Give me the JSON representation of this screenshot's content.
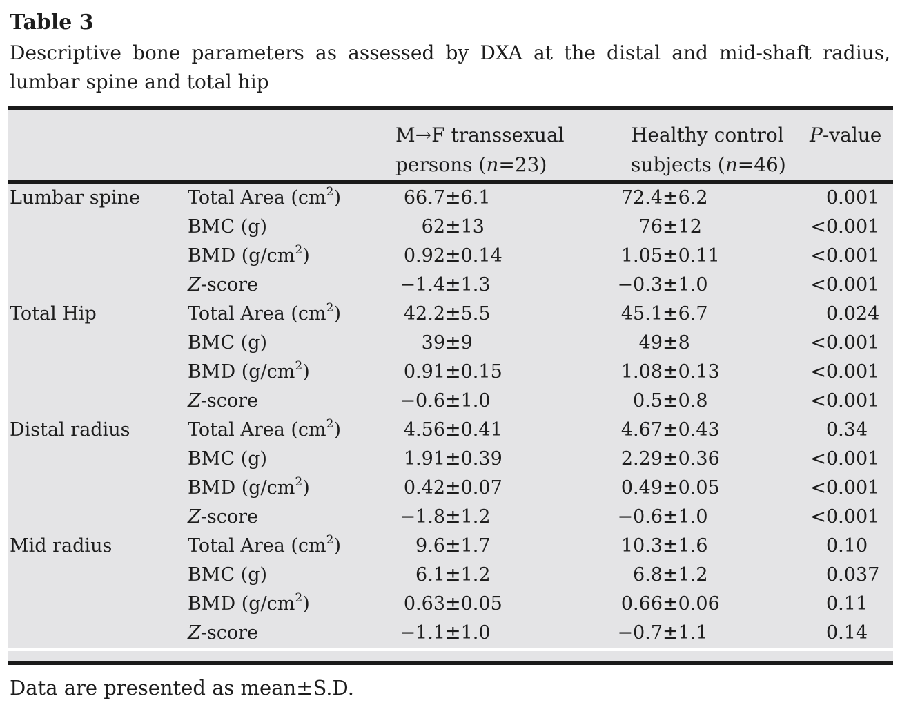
{
  "page": {
    "title": "Table 3",
    "caption": "Descriptive bone parameters as assessed by DXA at the distal and mid-shaft radius, lumbar spine and total hip",
    "footnote": "Data are presented as mean±S.D."
  },
  "colors": {
    "table_bg": "#e4e4e6",
    "rule": "#1a1a1a",
    "text": "#1d1d1d"
  },
  "table": {
    "pm": "±",
    "header": {
      "col3_line1": "M→F transsexual",
      "col3_line2_pre": "persons (",
      "col3_line2_italic": "n",
      "col3_line2_post": "=23)",
      "col4_line1": "Healthy control",
      "col4_line2_pre": "subjects (",
      "col4_line2_italic": "n",
      "col4_line2_post": "=46)",
      "col5_italic": "P",
      "col5_post": "-value"
    },
    "rows": [
      {
        "site": "Lumbar spine",
        "p_it": "",
        "p_pre": "Total Area (cm",
        "p_sup": "2",
        "p_post": ")",
        "g1m": "66.7",
        "g1s": "6.1",
        "g2m": "72.4",
        "g2s": "6.2",
        "plt": "",
        "pv": "0.001"
      },
      {
        "site": "",
        "p_it": "",
        "p_pre": "BMC (g)",
        "p_sup": "",
        "p_post": "",
        "g1m": "62",
        "g1s": "13",
        "g2m": "76",
        "g2s": "12",
        "plt": "<",
        "pv": "0.001"
      },
      {
        "site": "",
        "p_it": "",
        "p_pre": "BMD (g/cm",
        "p_sup": "2",
        "p_post": ")",
        "g1m": "0.92",
        "g1s": "0.14",
        "g2m": "1.05",
        "g2s": "0.11",
        "plt": "<",
        "pv": "0.001"
      },
      {
        "site": "",
        "p_it": "Z",
        "p_pre": "-score",
        "p_sup": "",
        "p_post": "",
        "g1m": "−1.4",
        "g1s": "1.3",
        "g2m": "−0.3",
        "g2s": "1.0",
        "plt": "<",
        "pv": "0.001"
      },
      {
        "site": "Total Hip",
        "p_it": "",
        "p_pre": "Total Area (cm",
        "p_sup": "2",
        "p_post": ")",
        "g1m": "42.2",
        "g1s": "5.5",
        "g2m": "45.1",
        "g2s": "6.7",
        "plt": "",
        "pv": "0.024"
      },
      {
        "site": "",
        "p_it": "",
        "p_pre": "BMC (g)",
        "p_sup": "",
        "p_post": "",
        "g1m": "39",
        "g1s": "9",
        "g2m": "49",
        "g2s": "8",
        "plt": "<",
        "pv": "0.001"
      },
      {
        "site": "",
        "p_it": "",
        "p_pre": "BMD (g/cm",
        "p_sup": "2",
        "p_post": ")",
        "g1m": "0.91",
        "g1s": "0.15",
        "g2m": "1.08",
        "g2s": "0.13",
        "plt": "<",
        "pv": "0.001"
      },
      {
        "site": "",
        "p_it": "Z",
        "p_pre": "-score",
        "p_sup": "",
        "p_post": "",
        "g1m": "−0.6",
        "g1s": "1.0",
        "g2m": "0.5",
        "g2s": "0.8",
        "plt": "<",
        "pv": "0.001"
      },
      {
        "site": "Distal radius",
        "p_it": "",
        "p_pre": "Total Area (cm",
        "p_sup": "2",
        "p_post": ")",
        "g1m": "4.56",
        "g1s": "0.41",
        "g2m": "4.67",
        "g2s": "0.43",
        "plt": "",
        "pv": "0.34"
      },
      {
        "site": "",
        "p_it": "",
        "p_pre": "BMC (g)",
        "p_sup": "",
        "p_post": "",
        "g1m": "1.91",
        "g1s": "0.39",
        "g2m": "2.29",
        "g2s": "0.36",
        "plt": "<",
        "pv": "0.001"
      },
      {
        "site": "",
        "p_it": "",
        "p_pre": "BMD (g/cm",
        "p_sup": "2",
        "p_post": ")",
        "g1m": "0.42",
        "g1s": "0.07",
        "g2m": "0.49",
        "g2s": "0.05",
        "plt": "<",
        "pv": "0.001"
      },
      {
        "site": "",
        "p_it": "Z",
        "p_pre": "-score",
        "p_sup": "",
        "p_post": "",
        "g1m": "−1.8",
        "g1s": "1.2",
        "g2m": "−0.6",
        "g2s": "1.0",
        "plt": "<",
        "pv": "0.001"
      },
      {
        "site": "Mid radius",
        "p_it": "",
        "p_pre": "Total Area (cm",
        "p_sup": "2",
        "p_post": ")",
        "g1m": "9.6",
        "g1s": "1.7",
        "g2m": "10.3",
        "g2s": "1.6",
        "plt": "",
        "pv": "0.10"
      },
      {
        "site": "",
        "p_it": "",
        "p_pre": "BMC (g)",
        "p_sup": "",
        "p_post": "",
        "g1m": "6.1",
        "g1s": "1.2",
        "g2m": "6.8",
        "g2s": "1.2",
        "plt": "",
        "pv": "0.037"
      },
      {
        "site": "",
        "p_it": "",
        "p_pre": "BMD (g/cm",
        "p_sup": "2",
        "p_post": ")",
        "g1m": "0.63",
        "g1s": "0.05",
        "g2m": "0.66",
        "g2s": "0.06",
        "plt": "",
        "pv": "0.11"
      },
      {
        "site": "",
        "p_it": "Z",
        "p_pre": "-score",
        "p_sup": "",
        "p_post": "",
        "g1m": "−1.1",
        "g1s": "1.0",
        "g2m": "−0.7",
        "g2s": "1.1",
        "plt": "",
        "pv": "0.14"
      }
    ]
  }
}
